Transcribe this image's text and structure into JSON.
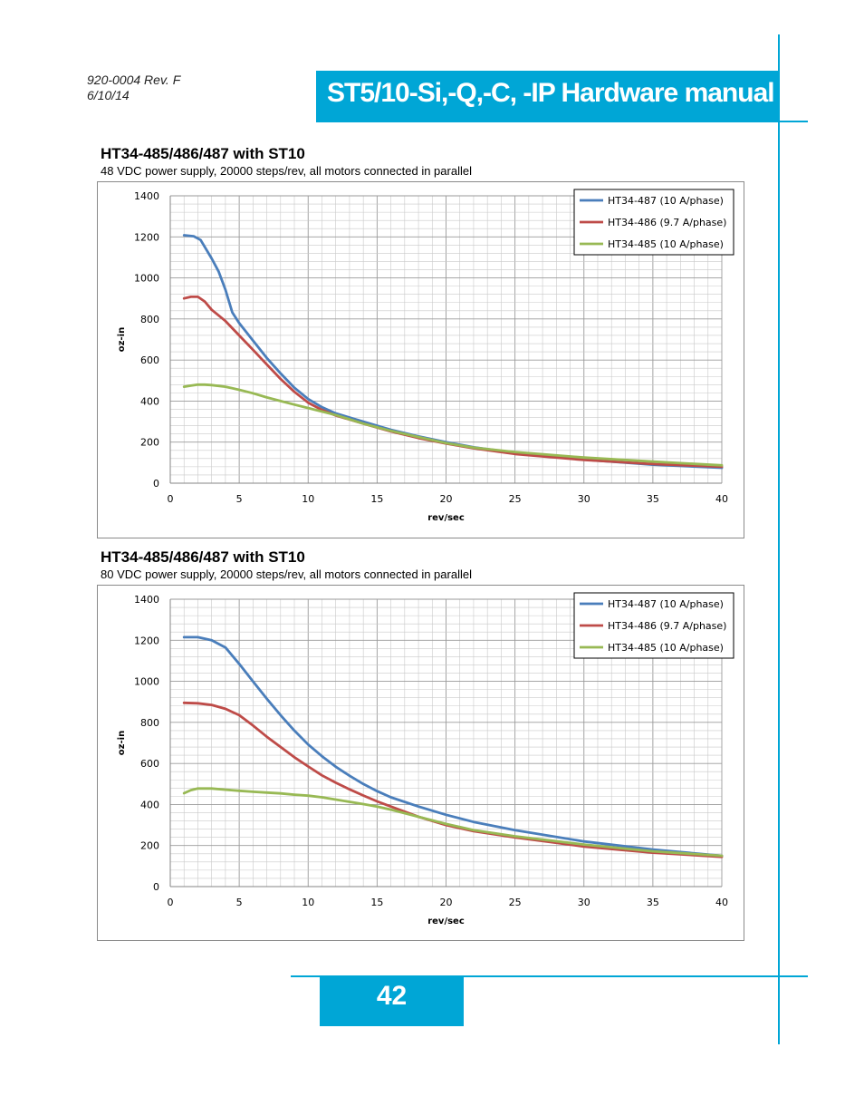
{
  "header": {
    "doc_number": "920-0004 Rev. F",
    "date": "6/10/14",
    "manual_title": "ST5/10-Si,-Q,-C, -IP Hardware manual"
  },
  "footer": {
    "page_number": "42"
  },
  "colors": {
    "accent": "#00a6d6",
    "ht34_487": "#4a7ebb",
    "ht34_486": "#be4b48",
    "ht34_485": "#98b954"
  },
  "charts": [
    {
      "heading": "HT34-485/486/487 with ST10",
      "subtitle": "48 VDC power supply, 20000 steps/rev, all motors connected in parallel"
    },
    {
      "heading": "HT34-485/486/487 with ST10",
      "subtitle": "80 VDC power supply, 20000 steps/rev, all motors connected in parallel"
    }
  ],
  "chart_data": [
    {
      "type": "line",
      "xlabel": "rev/sec",
      "ylabel": "oz-in",
      "xlim": [
        0,
        40
      ],
      "ylim": [
        0,
        1400
      ],
      "xticks": [
        0,
        5,
        10,
        15,
        20,
        25,
        30,
        35,
        40
      ],
      "yticks": [
        0,
        200,
        400,
        600,
        800,
        1000,
        1200,
        1400
      ],
      "grid": true,
      "legend_position": "top-right",
      "series": [
        {
          "name": "HT34-487 (10 A/phase)",
          "color": "#4a7ebb",
          "x": [
            1,
            1.7,
            2.2,
            3,
            3.5,
            4,
            4.5,
            5,
            6,
            7,
            8,
            9,
            10,
            11,
            12,
            14,
            16,
            18,
            20,
            22,
            25,
            30,
            35,
            40
          ],
          "y": [
            1208,
            1203,
            1185,
            1095,
            1032,
            943,
            832,
            780,
            695,
            610,
            535,
            465,
            410,
            370,
            340,
            300,
            260,
            228,
            200,
            175,
            148,
            115,
            90,
            75
          ]
        },
        {
          "name": "HT34-486 (9.7 A/phase)",
          "color": "#be4b48",
          "x": [
            1,
            1.5,
            2,
            2.5,
            3,
            4,
            5,
            6,
            7,
            8,
            9,
            10,
            11,
            12,
            14,
            16,
            18,
            20,
            22,
            25,
            30,
            35,
            40
          ],
          "y": [
            900,
            908,
            908,
            885,
            845,
            790,
            720,
            650,
            578,
            508,
            445,
            392,
            357,
            330,
            290,
            252,
            220,
            193,
            170,
            142,
            113,
            93,
            80
          ]
        },
        {
          "name": "HT34-485 (10 A/phase)",
          "color": "#98b954",
          "x": [
            1,
            1.5,
            2,
            2.5,
            3,
            4,
            5,
            6,
            7,
            8,
            9,
            10,
            12,
            14,
            16,
            18,
            20,
            22,
            25,
            30,
            35,
            40
          ],
          "y": [
            470,
            475,
            480,
            480,
            478,
            470,
            455,
            438,
            418,
            400,
            383,
            366,
            332,
            290,
            255,
            225,
            195,
            173,
            152,
            125,
            105,
            87
          ]
        }
      ]
    },
    {
      "type": "line",
      "xlabel": "rev/sec",
      "ylabel": "oz-in",
      "xlim": [
        0,
        40
      ],
      "ylim": [
        0,
        1400
      ],
      "xticks": [
        0,
        5,
        10,
        15,
        20,
        25,
        30,
        35,
        40
      ],
      "yticks": [
        0,
        200,
        400,
        600,
        800,
        1000,
        1200,
        1400
      ],
      "grid": true,
      "legend_position": "top-right",
      "series": [
        {
          "name": "HT34-487 (10 A/phase)",
          "color": "#4a7ebb",
          "x": [
            1,
            2,
            3,
            4,
            5,
            6,
            7,
            8,
            9,
            10,
            11,
            12,
            13,
            14,
            15,
            16,
            18,
            20,
            22,
            25,
            30,
            35,
            40
          ],
          "y": [
            1215,
            1215,
            1200,
            1165,
            1085,
            1000,
            915,
            835,
            760,
            692,
            635,
            584,
            540,
            500,
            465,
            435,
            390,
            350,
            315,
            275,
            220,
            180,
            150
          ]
        },
        {
          "name": "HT34-486 (9.7 A/phase)",
          "color": "#be4b48",
          "x": [
            1,
            2,
            3,
            4,
            5,
            6,
            7,
            8,
            9,
            10,
            11,
            12,
            13,
            14,
            15,
            16,
            18,
            20,
            22,
            25,
            30,
            35,
            40
          ],
          "y": [
            895,
            893,
            885,
            866,
            835,
            785,
            730,
            680,
            630,
            585,
            542,
            506,
            474,
            444,
            415,
            390,
            340,
            300,
            270,
            240,
            195,
            165,
            145
          ]
        },
        {
          "name": "HT34-485 (10 A/phase)",
          "color": "#98b954",
          "x": [
            1,
            1.5,
            2,
            3,
            4,
            5,
            6,
            7,
            8,
            9,
            10,
            11,
            12,
            13,
            14,
            15,
            16,
            18,
            20,
            22,
            25,
            30,
            35,
            40
          ],
          "y": [
            455,
            470,
            478,
            478,
            472,
            467,
            462,
            458,
            454,
            448,
            443,
            435,
            424,
            413,
            402,
            390,
            375,
            340,
            305,
            275,
            245,
            205,
            172,
            150
          ]
        }
      ]
    }
  ]
}
